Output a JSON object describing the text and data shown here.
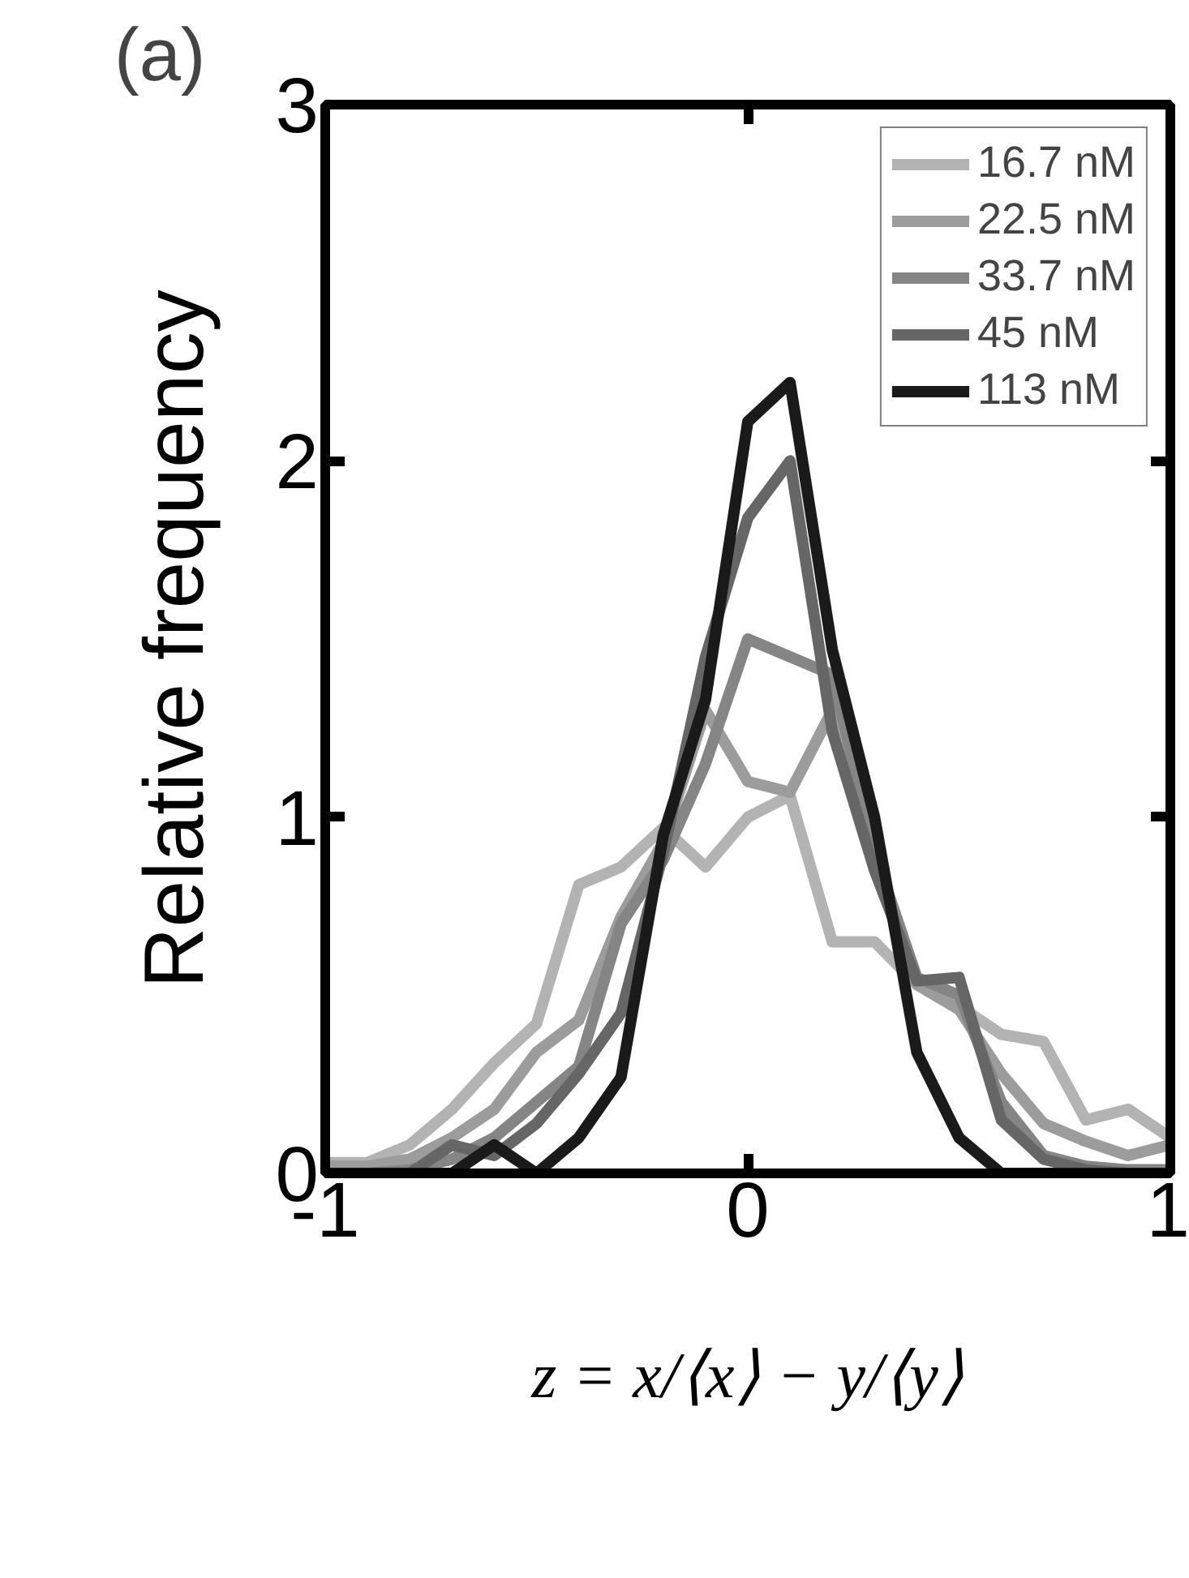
{
  "chart_data": {
    "type": "line",
    "title": "(a)",
    "xlabel": "z = x/⟨x⟩ − y/⟨y⟩",
    "ylabel": "Relative frequency",
    "x": [
      -1,
      -0.9,
      -0.8,
      -0.7,
      -0.6,
      -0.5,
      -0.4,
      -0.3,
      -0.2,
      -0.1,
      0,
      0.1,
      0.2,
      0.3,
      0.4,
      0.5,
      0.6,
      0.7,
      0.8,
      0.9,
      1
    ],
    "series": [
      {
        "name": "16.7 nM",
        "color": "#b3b3b3",
        "values": [
          0.03,
          0.03,
          0.08,
          0.18,
          0.31,
          0.42,
          0.81,
          0.86,
          0.97,
          0.86,
          1.0,
          1.06,
          0.65,
          0.65,
          0.53,
          0.47,
          0.39,
          0.37,
          0.15,
          0.18,
          0.1
        ]
      },
      {
        "name": "22.5 nM",
        "color": "#9c9c9c",
        "values": [
          0.02,
          0.02,
          0.04,
          0.1,
          0.18,
          0.34,
          0.43,
          0.72,
          0.93,
          1.3,
          1.1,
          1.07,
          1.3,
          0.86,
          0.53,
          0.46,
          0.28,
          0.14,
          0.09,
          0.05,
          0.08
        ]
      },
      {
        "name": "33.7 nM",
        "color": "#858585",
        "values": [
          0,
          0,
          0.01,
          0.04,
          0.1,
          0.2,
          0.3,
          0.7,
          0.88,
          1.15,
          1.5,
          1.45,
          1.4,
          0.9,
          0.55,
          0.5,
          0.2,
          0.05,
          0.02,
          0.01,
          0.01
        ]
      },
      {
        "name": "45 nM",
        "color": "#666666",
        "values": [
          0,
          0,
          0,
          0.08,
          0.05,
          0.14,
          0.28,
          0.45,
          0.9,
          1.45,
          1.84,
          2.0,
          1.24,
          0.85,
          0.54,
          0.55,
          0.15,
          0.04,
          0.01,
          0,
          0
        ]
      },
      {
        "name": "113 nM",
        "color": "#1a1a1a",
        "values": [
          0,
          0,
          0,
          0,
          0.08,
          0,
          0.1,
          0.27,
          0.95,
          1.33,
          2.11,
          2.22,
          1.47,
          1.0,
          0.34,
          0.1,
          0,
          0,
          0,
          0,
          0
        ]
      }
    ],
    "xlim": [
      -1,
      1
    ],
    "ylim": [
      0,
      3
    ],
    "xticks": [
      -1,
      0,
      1
    ],
    "yticks": [
      0,
      1,
      2,
      3
    ],
    "legend": "top right",
    "grid": false,
    "line_style": "solid",
    "marker": "none"
  }
}
